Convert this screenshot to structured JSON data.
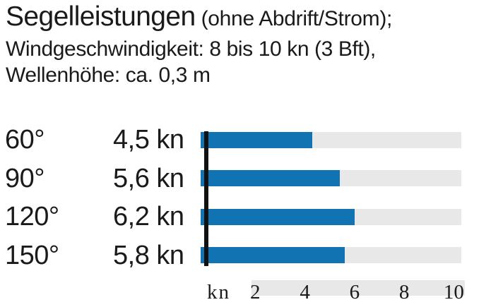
{
  "header": {
    "title": "Segelleistungen",
    "title_suffix": " (ohne Abdrift/Strom);",
    "line2": "Windgeschwindigkeit: 8 bis 10 kn (3 Bft),",
    "line3": "Wellenhöhe: ca. 0,3 m"
  },
  "chart_data": {
    "type": "bar",
    "orientation": "horizontal",
    "title": "Segelleistungen (ohne Abdrift/Strom)",
    "conditions": [
      "Windgeschwindigkeit: 8 bis 10 kn (3 Bft)",
      "Wellenhöhe: ca. 0,3 m"
    ],
    "categories": [
      "60°",
      "90°",
      "120°",
      "150°"
    ],
    "values": [
      4.5,
      5.6,
      6.2,
      5.8
    ],
    "value_labels": [
      "4,5 kn",
      "5,6 kn",
      "6,2 kn",
      "5,8 kn"
    ],
    "unit": "kn",
    "xlabel": "kn",
    "x_ticks": [
      "2",
      "4",
      "6",
      "8",
      "10"
    ],
    "x_tick_values": [
      2,
      4,
      6,
      8,
      10
    ],
    "xlim": [
      0,
      10.5
    ],
    "grid": false,
    "legend": false,
    "colors": {
      "bar": "#1173b2",
      "track": "#e8e8e8",
      "axis_line": "#111111",
      "tick_strip": "#e8e8e8",
      "text": "#1a1a1a"
    }
  }
}
